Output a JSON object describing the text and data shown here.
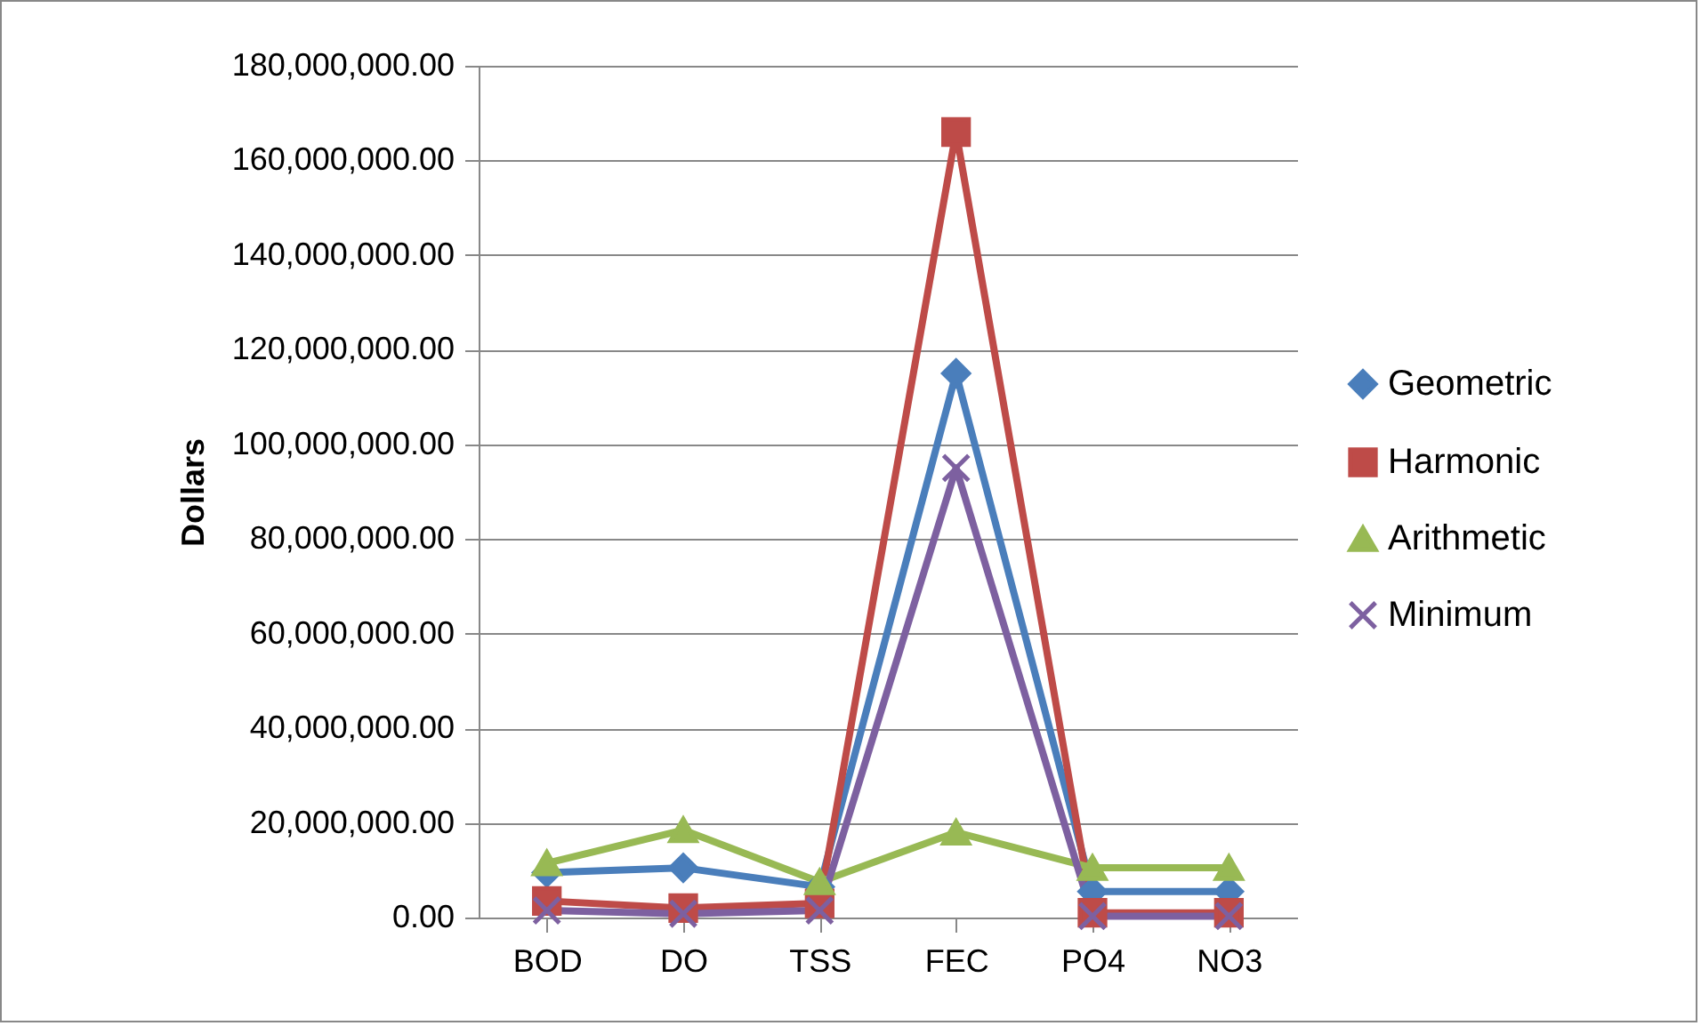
{
  "chart_data": {
    "type": "line",
    "ylabel": "Dollars",
    "categories": [
      "BOD",
      "DO",
      "TSS",
      "FEC",
      "PO4",
      "NO3"
    ],
    "series": [
      {
        "name": "Geometric",
        "color": "#4a7ebb",
        "marker": "diamond",
        "values": [
          9500000,
          10500000,
          6500000,
          115000000,
          5500000,
          5500000
        ]
      },
      {
        "name": "Harmonic",
        "color": "#be4b48",
        "marker": "square",
        "values": [
          3500000,
          2000000,
          3000000,
          166000000,
          1000000,
          1000000
        ]
      },
      {
        "name": "Arithmetic",
        "color": "#98b954",
        "marker": "triangle",
        "values": [
          11500000,
          18500000,
          7500000,
          18000000,
          10500000,
          10500000
        ]
      },
      {
        "name": "Minimum",
        "color": "#7d60a0",
        "marker": "cross",
        "values": [
          1500000,
          800000,
          1500000,
          95000000,
          300000,
          300000
        ]
      }
    ],
    "ylim": [
      0,
      180000000
    ],
    "yticks": [
      {
        "value": 0,
        "label": "0.00"
      },
      {
        "value": 20000000,
        "label": "20,000,000.00"
      },
      {
        "value": 40000000,
        "label": "40,000,000.00"
      },
      {
        "value": 60000000,
        "label": "60,000,000.00"
      },
      {
        "value": 80000000,
        "label": "80,000,000.00"
      },
      {
        "value": 100000000,
        "label": "100,000,000.00"
      },
      {
        "value": 120000000,
        "label": "120,000,000.00"
      },
      {
        "value": 140000000,
        "label": "140,000,000.00"
      },
      {
        "value": 160000000,
        "label": "160,000,000.00"
      },
      {
        "value": 180000000,
        "label": "180,000,000.00"
      }
    ],
    "grid": "y",
    "legend": "right"
  }
}
